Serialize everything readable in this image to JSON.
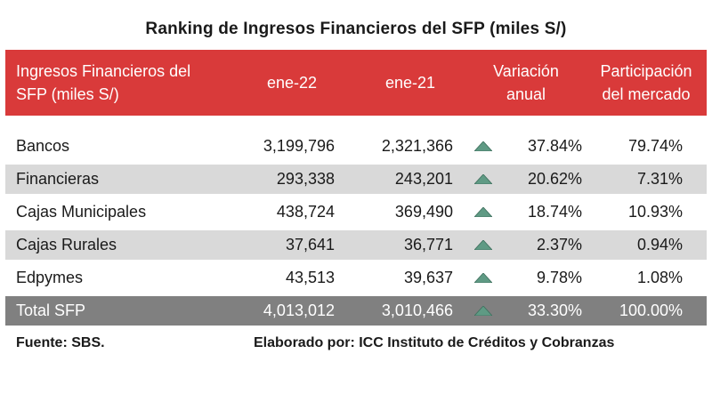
{
  "title": "Ranking de Ingresos Financieros del SFP (miles S/)",
  "header": {
    "name_line1": "Ingresos Financieros del",
    "name_line2": "SFP (miles S/)",
    "col1": "ene-22",
    "col2": "ene-21",
    "col3_line1": "Variación",
    "col3_line2": "anual",
    "col4_line1": "Participación",
    "col4_line2": "del mercado"
  },
  "rows": [
    {
      "name": "Bancos",
      "ene22": "3,199,796",
      "ene21": "2,321,366",
      "trend": "up-arrow-icon",
      "variacion": "37.84%",
      "participacion": "79.74%"
    },
    {
      "name": "Financieras",
      "ene22": "293,338",
      "ene21": "243,201",
      "trend": "up-arrow-icon",
      "variacion": "20.62%",
      "participacion": "7.31%"
    },
    {
      "name": "Cajas Municipales",
      "ene22": "438,724",
      "ene21": "369,490",
      "trend": "up-arrow-icon",
      "variacion": "18.74%",
      "participacion": "10.93%"
    },
    {
      "name": "Cajas Rurales",
      "ene22": "37,641",
      "ene21": "36,771",
      "trend": "up-arrow-icon",
      "variacion": "2.37%",
      "participacion": "0.94%"
    },
    {
      "name": "Edpymes",
      "ene22": "43,513",
      "ene21": "39,637",
      "trend": "up-arrow-icon",
      "variacion": "9.78%",
      "participacion": "1.08%"
    }
  ],
  "total": {
    "name": "Total SFP",
    "ene22": "4,013,012",
    "ene21": "3,010,466",
    "trend": "up-arrow-icon",
    "variacion": "33.30%",
    "participacion": "100.00%"
  },
  "colors": {
    "header_bg": "#d93a3a",
    "shade_bg": "#d9d9d9",
    "total_bg": "#808080",
    "arrow": "#5f9a84"
  },
  "footer": {
    "source": "Fuente: SBS.",
    "credit": "Elaborado por: ICC Instituto de Créditos y Cobranzas"
  }
}
